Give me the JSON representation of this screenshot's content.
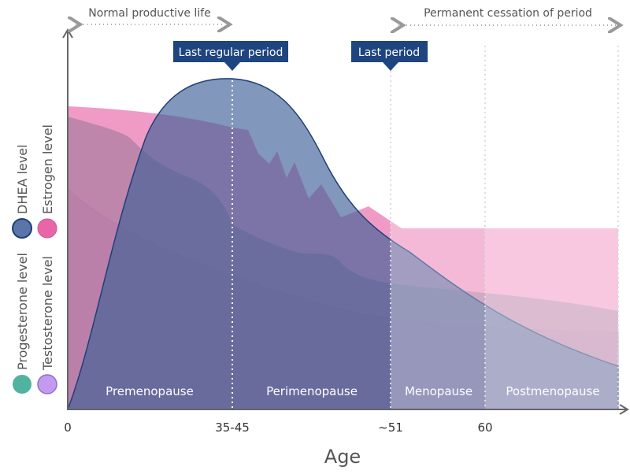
{
  "annotations": {
    "normal_life": "Normal productive life",
    "cessation": "Permanent cessation of period",
    "last_regular_period": "Last regular period",
    "last_period": "Last period"
  },
  "phases": [
    "Premenopause",
    "Perimenopause",
    "Menopause",
    "Postmenopause"
  ],
  "x_ticks": [
    "0",
    "35-45",
    "~51",
    "60"
  ],
  "x_label": "Age",
  "legend": [
    {
      "label": "DHEA level",
      "color": "#5a75a8"
    },
    {
      "label": "Estrogen level",
      "color": "#e866a8"
    },
    {
      "label": "Progesterone level",
      "color": "#4fb3a0"
    },
    {
      "label": "Testosterone level",
      "color": "#c49af0"
    }
  ],
  "colors": {
    "callout": "#1f4580",
    "dhea_line": "#1f3f7a"
  }
}
